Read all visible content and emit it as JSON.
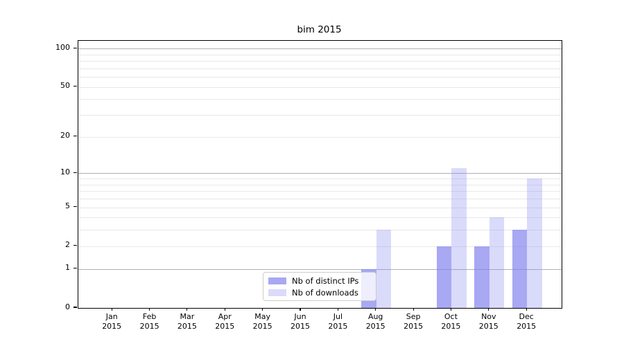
{
  "chart_data": {
    "type": "bar",
    "title": "bim 2015",
    "yscale": "log1p",
    "grid": true,
    "legend_position": "lower center",
    "categories": [
      "Jan 2015",
      "Feb 2015",
      "Mar 2015",
      "Apr 2015",
      "May 2015",
      "Jun 2015",
      "Jul 2015",
      "Aug 2015",
      "Sep 2015",
      "Oct 2015",
      "Nov 2015",
      "Dec 2015"
    ],
    "series": [
      {
        "name": "Nb of distinct IPs",
        "color": "rgba(131,131,238,0.7)",
        "values": [
          0,
          0,
          0,
          0,
          0,
          0,
          0,
          1,
          0,
          2,
          2,
          3
        ]
      },
      {
        "name": "Nb of downloads",
        "color": "rgba(131,131,238,0.3)",
        "values": [
          0,
          0,
          0,
          0,
          0,
          0,
          0,
          3,
          0,
          11,
          4,
          9
        ]
      }
    ],
    "y_ticks": [
      0,
      1,
      2,
      5,
      10,
      20,
      50,
      100
    ],
    "y_gridlines": {
      "major": [
        1,
        10,
        100
      ],
      "minor": [
        2,
        3,
        4,
        5,
        6,
        7,
        8,
        9,
        20,
        30,
        40,
        50,
        60,
        70,
        80,
        90
      ]
    },
    "ylim": [
      0,
      116
    ],
    "xlabel": "",
    "ylabel": ""
  },
  "colors": {
    "bar_base": "#8383ee",
    "grid_major": "#b0b0b0",
    "grid_minor": "#e8e8e8",
    "spine": "#000000",
    "legend_border": "#cccccc",
    "legend_background": "rgba(255,255,255,0.8)",
    "text": "#000000"
  }
}
